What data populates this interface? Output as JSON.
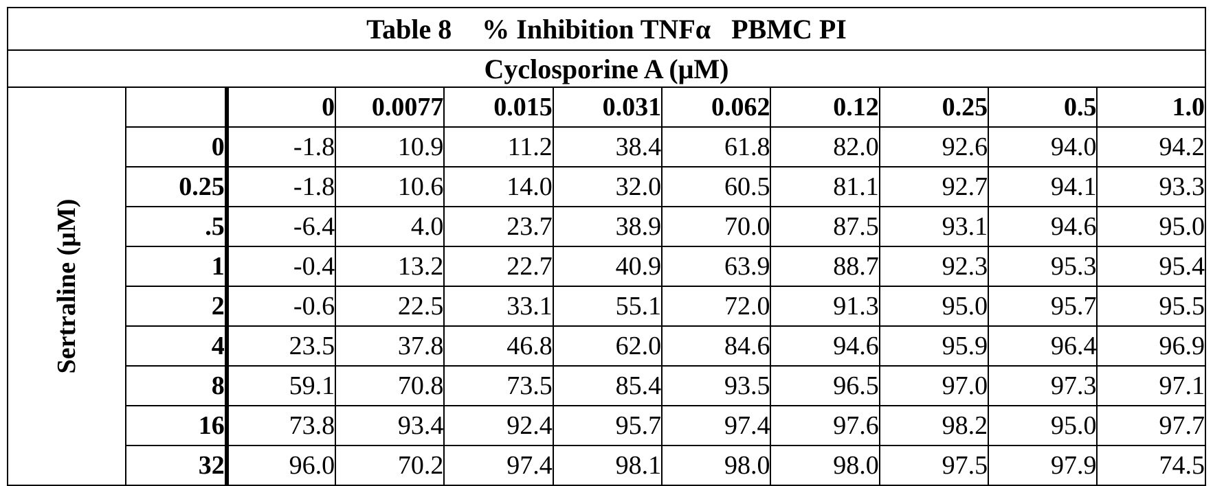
{
  "table": {
    "title": {
      "part1": "Table 8",
      "part2": "% Inhibition TNFα",
      "part3": "PBMC PI"
    },
    "column_group_label": "Cyclosporine A (μM)",
    "row_group_label": "Sertraline (μM)",
    "column_headers": [
      "0",
      "0.0077",
      "0.015",
      "0.031",
      "0.062",
      "0.12",
      "0.25",
      "0.5",
      "1.0"
    ],
    "rows": [
      {
        "label": "0",
        "values": [
          "-1.8",
          "10.9",
          "11.2",
          "38.4",
          "61.8",
          "82.0",
          "92.6",
          "94.0",
          "94.2"
        ]
      },
      {
        "label": "0.25",
        "values": [
          "-1.8",
          "10.6",
          "14.0",
          "32.0",
          "60.5",
          "81.1",
          "92.7",
          "94.1",
          "93.3"
        ]
      },
      {
        "label": ".5",
        "values": [
          "-6.4",
          "4.0",
          "23.7",
          "38.9",
          "70.0",
          "87.5",
          "93.1",
          "94.6",
          "95.0"
        ]
      },
      {
        "label": "1",
        "values": [
          "-0.4",
          "13.2",
          "22.7",
          "40.9",
          "63.9",
          "88.7",
          "92.3",
          "95.3",
          "95.4"
        ]
      },
      {
        "label": "2",
        "values": [
          "-0.6",
          "22.5",
          "33.1",
          "55.1",
          "72.0",
          "91.3",
          "95.0",
          "95.7",
          "95.5"
        ]
      },
      {
        "label": "4",
        "values": [
          "23.5",
          "37.8",
          "46.8",
          "62.0",
          "84.6",
          "94.6",
          "95.9",
          "96.4",
          "96.9"
        ]
      },
      {
        "label": "8",
        "values": [
          "59.1",
          "70.8",
          "73.5",
          "85.4",
          "93.5",
          "96.5",
          "97.0",
          "97.3",
          "97.1"
        ]
      },
      {
        "label": "16",
        "values": [
          "73.8",
          "93.4",
          "92.4",
          "95.7",
          "97.4",
          "97.6",
          "98.2",
          "95.0",
          "97.7"
        ]
      },
      {
        "label": "32",
        "values": [
          "96.0",
          "70.2",
          "97.4",
          "98.1",
          "98.0",
          "98.0",
          "97.5",
          "97.9",
          "74.5"
        ]
      }
    ]
  }
}
